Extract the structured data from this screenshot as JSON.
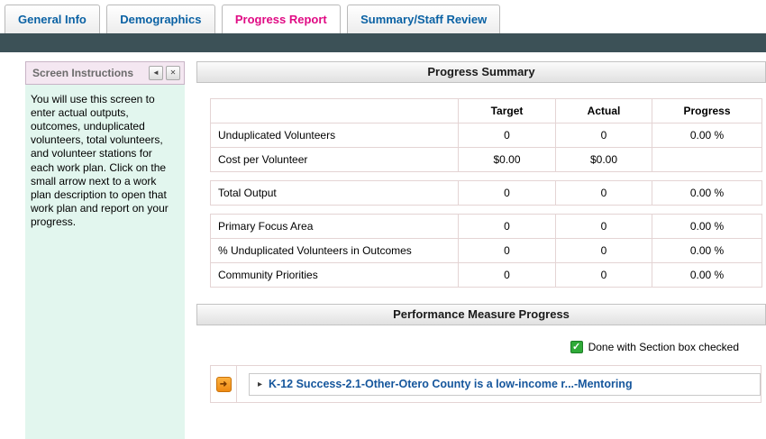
{
  "tabs": [
    {
      "label": "General Info",
      "active": false
    },
    {
      "label": "Demographics",
      "active": false
    },
    {
      "label": "Progress Report",
      "active": true
    },
    {
      "label": "Summary/Staff Review",
      "active": false
    }
  ],
  "sidebar": {
    "title": "Screen Instructions",
    "body": "You will use this screen to enter actual outputs, outcomes, unduplicated volunteers, total volunteers, and volunteer stations for each work plan. Click on the small arrow next to a work plan description to open that work plan and report on your progress."
  },
  "progress_summary": {
    "title": "Progress Summary",
    "columns": [
      "",
      "Target",
      "Actual",
      "Progress"
    ],
    "groups": [
      {
        "rows": [
          {
            "label": "Unduplicated Volunteers",
            "target": "0",
            "actual": "0",
            "progress": "0.00 %"
          },
          {
            "label": "Cost per Volunteer",
            "target": "$0.00",
            "actual": "$0.00",
            "progress": ""
          }
        ]
      },
      {
        "rows": [
          {
            "label": "Total Output",
            "target": "0",
            "actual": "0",
            "progress": "0.00 %"
          }
        ]
      },
      {
        "rows": [
          {
            "label": "Primary Focus Area",
            "target": "0",
            "actual": "0",
            "progress": "0.00 %"
          },
          {
            "label": "% Unduplicated Volunteers in Outcomes",
            "target": "0",
            "actual": "0",
            "progress": "0.00 %"
          },
          {
            "label": "Community Priorities",
            "target": "0",
            "actual": "0",
            "progress": "0.00 %"
          }
        ]
      }
    ]
  },
  "performance": {
    "title": "Performance Measure Progress",
    "legend": "Done with Section box checked",
    "workplans": [
      {
        "label": "K-12 Success-2.1-Other-Otero County is a low-income r...-Mentoring"
      }
    ]
  },
  "icons": {
    "collapse": "◄",
    "close": "✕",
    "check": "✓",
    "arrow": "➜",
    "expand": "▸"
  },
  "colors": {
    "active_tab_text": "#e00b84",
    "inactive_tab_text": "#0b62a4",
    "header_strip": "#3c5157",
    "instructions_panel": "#e2f6ee",
    "checkbox_green": "#2faa38",
    "workplan_link": "#15569c"
  }
}
